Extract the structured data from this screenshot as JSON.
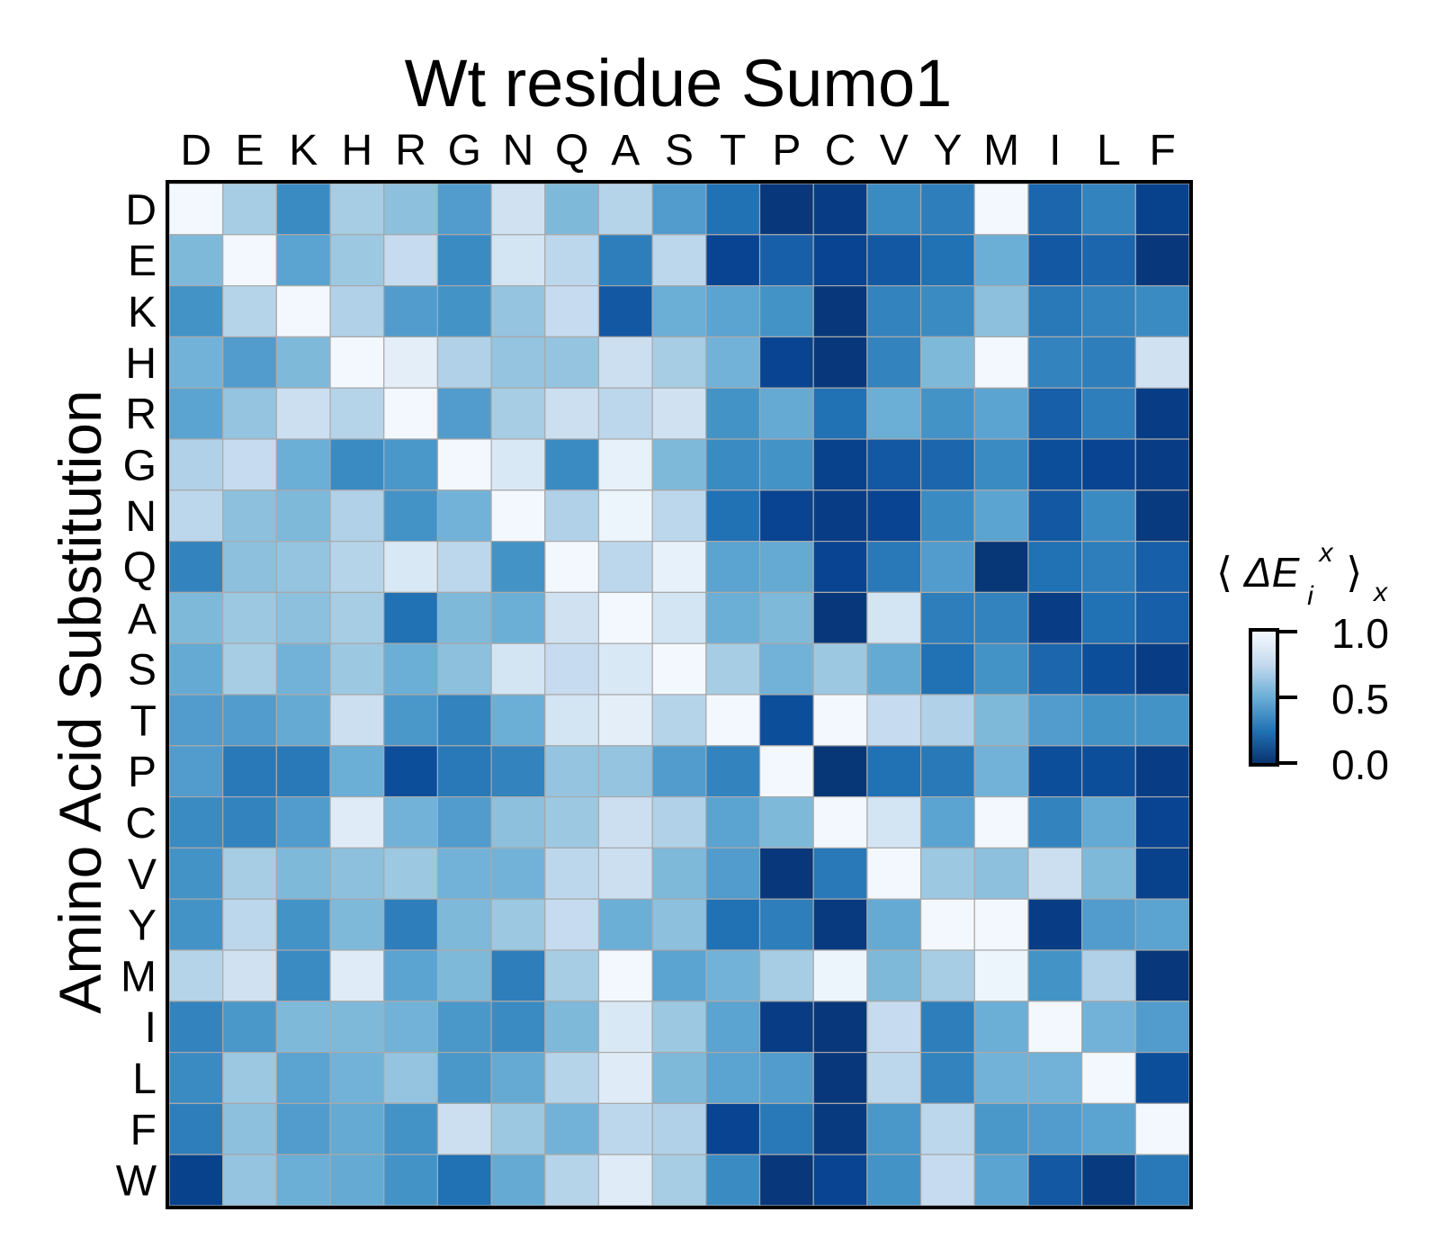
{
  "chart_data": {
    "type": "heatmap",
    "title": "Wt residue Sumo1",
    "xlabel": "",
    "ylabel": "Amino Acid Substitution",
    "x_categories": [
      "D",
      "E",
      "K",
      "H",
      "R",
      "G",
      "N",
      "Q",
      "A",
      "S",
      "T",
      "P",
      "C",
      "V",
      "Y",
      "M",
      "I",
      "L",
      "F"
    ],
    "y_categories": [
      "D",
      "E",
      "K",
      "H",
      "R",
      "G",
      "N",
      "Q",
      "A",
      "S",
      "T",
      "P",
      "C",
      "V",
      "Y",
      "M",
      "I",
      "L",
      "F",
      "W"
    ],
    "colorbar": {
      "label_parts": [
        "⟨",
        "ΔE",
        "i",
        "x",
        "⟩",
        "x"
      ],
      "ticks": [
        "1.0",
        "0.5",
        "0.0"
      ],
      "tick_values": [
        1.0,
        0.5,
        0.0
      ],
      "range": [
        0,
        1
      ],
      "colormap": "Blues_r",
      "low_color": "#08306b",
      "high_color": "#f7fbff"
    },
    "values": [
      [
        0.98,
        0.65,
        0.35,
        0.65,
        0.58,
        0.42,
        0.8,
        0.55,
        0.7,
        0.42,
        0.25,
        0.05,
        0.08,
        0.35,
        0.3,
        0.98,
        0.22,
        0.32,
        0.1
      ],
      [
        0.55,
        0.98,
        0.45,
        0.62,
        0.75,
        0.35,
        0.82,
        0.72,
        0.3,
        0.72,
        0.12,
        0.2,
        0.12,
        0.18,
        0.25,
        0.5,
        0.18,
        0.22,
        0.05
      ],
      [
        0.38,
        0.7,
        0.98,
        0.68,
        0.42,
        0.38,
        0.6,
        0.75,
        0.18,
        0.5,
        0.45,
        0.38,
        0.05,
        0.32,
        0.35,
        0.58,
        0.28,
        0.32,
        0.35
      ],
      [
        0.52,
        0.42,
        0.55,
        0.98,
        0.9,
        0.68,
        0.6,
        0.6,
        0.78,
        0.65,
        0.52,
        0.12,
        0.05,
        0.32,
        0.55,
        0.98,
        0.32,
        0.3,
        0.8
      ],
      [
        0.45,
        0.6,
        0.78,
        0.7,
        0.98,
        0.42,
        0.65,
        0.78,
        0.72,
        0.8,
        0.38,
        0.48,
        0.25,
        0.5,
        0.38,
        0.45,
        0.2,
        0.3,
        0.08
      ],
      [
        0.68,
        0.75,
        0.5,
        0.35,
        0.4,
        0.98,
        0.85,
        0.35,
        0.92,
        0.55,
        0.35,
        0.38,
        0.1,
        0.18,
        0.22,
        0.35,
        0.15,
        0.12,
        0.08
      ],
      [
        0.72,
        0.58,
        0.55,
        0.68,
        0.38,
        0.52,
        0.98,
        0.68,
        0.95,
        0.72,
        0.25,
        0.12,
        0.08,
        0.12,
        0.35,
        0.45,
        0.18,
        0.35,
        0.06
      ],
      [
        0.32,
        0.58,
        0.6,
        0.7,
        0.85,
        0.72,
        0.38,
        0.98,
        0.72,
        0.92,
        0.45,
        0.48,
        0.12,
        0.28,
        0.42,
        0.04,
        0.25,
        0.3,
        0.2
      ],
      [
        0.55,
        0.62,
        0.58,
        0.65,
        0.25,
        0.55,
        0.5,
        0.8,
        0.98,
        0.82,
        0.5,
        0.55,
        0.05,
        0.82,
        0.3,
        0.32,
        0.08,
        0.25,
        0.2
      ],
      [
        0.48,
        0.65,
        0.52,
        0.62,
        0.5,
        0.58,
        0.82,
        0.75,
        0.85,
        0.98,
        0.65,
        0.52,
        0.62,
        0.48,
        0.25,
        0.38,
        0.22,
        0.15,
        0.08
      ],
      [
        0.42,
        0.42,
        0.48,
        0.78,
        0.4,
        0.32,
        0.5,
        0.82,
        0.9,
        0.7,
        0.98,
        0.15,
        0.98,
        0.75,
        0.68,
        0.55,
        0.42,
        0.38,
        0.38
      ],
      [
        0.42,
        0.28,
        0.28,
        0.5,
        0.15,
        0.28,
        0.32,
        0.6,
        0.6,
        0.42,
        0.32,
        0.98,
        0.04,
        0.25,
        0.28,
        0.52,
        0.15,
        0.15,
        0.08
      ],
      [
        0.35,
        0.32,
        0.42,
        0.88,
        0.52,
        0.42,
        0.58,
        0.62,
        0.78,
        0.68,
        0.45,
        0.55,
        0.98,
        0.82,
        0.45,
        0.98,
        0.32,
        0.48,
        0.12
      ],
      [
        0.38,
        0.65,
        0.55,
        0.58,
        0.62,
        0.52,
        0.52,
        0.72,
        0.78,
        0.55,
        0.42,
        0.05,
        0.28,
        0.98,
        0.62,
        0.58,
        0.78,
        0.55,
        0.1
      ],
      [
        0.38,
        0.72,
        0.38,
        0.55,
        0.3,
        0.55,
        0.62,
        0.75,
        0.5,
        0.58,
        0.25,
        0.3,
        0.06,
        0.48,
        0.98,
        0.98,
        0.08,
        0.42,
        0.45
      ],
      [
        0.7,
        0.8,
        0.35,
        0.88,
        0.45,
        0.55,
        0.3,
        0.65,
        0.98,
        0.45,
        0.52,
        0.65,
        0.95,
        0.55,
        0.65,
        0.95,
        0.38,
        0.68,
        0.05
      ],
      [
        0.32,
        0.4,
        0.55,
        0.55,
        0.52,
        0.4,
        0.35,
        0.55,
        0.85,
        0.62,
        0.45,
        0.08,
        0.05,
        0.75,
        0.3,
        0.5,
        0.98,
        0.52,
        0.42
      ],
      [
        0.35,
        0.62,
        0.45,
        0.52,
        0.6,
        0.4,
        0.48,
        0.7,
        0.88,
        0.55,
        0.45,
        0.42,
        0.05,
        0.72,
        0.32,
        0.52,
        0.52,
        0.98,
        0.15
      ],
      [
        0.3,
        0.58,
        0.42,
        0.48,
        0.38,
        0.78,
        0.62,
        0.52,
        0.72,
        0.68,
        0.12,
        0.28,
        0.06,
        0.4,
        0.72,
        0.4,
        0.42,
        0.45,
        0.98
      ],
      [
        0.1,
        0.6,
        0.5,
        0.48,
        0.38,
        0.25,
        0.48,
        0.7,
        0.88,
        0.65,
        0.35,
        0.05,
        0.12,
        0.38,
        0.75,
        0.45,
        0.18,
        0.06,
        0.28
      ]
    ]
  }
}
